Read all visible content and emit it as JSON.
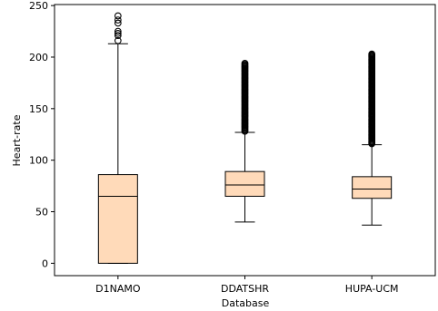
{
  "chart_data": {
    "type": "box",
    "xlabel": "Database",
    "ylabel": "Heart-rate",
    "ylim": [
      -12,
      251
    ],
    "yticks": [
      0,
      50,
      100,
      150,
      200,
      250
    ],
    "grid": false,
    "box_fill": "#ffdab9",
    "box_edge": "#000000",
    "categories": [
      "D1NAMO",
      "DDATSHR",
      "HUPA-UCM"
    ],
    "boxes": [
      {
        "label": "D1NAMO",
        "whisker_low": 0,
        "q1": 0,
        "median": 65,
        "q3": 86,
        "whisker_high": 213,
        "outliers": [
          216,
          221,
          223,
          225,
          233,
          236,
          240
        ]
      },
      {
        "label": "DDATSHR",
        "whisker_low": 40,
        "q1": 65,
        "median": 76,
        "q3": 89,
        "whisker_high": 127,
        "outlier_range": [
          128,
          194
        ]
      },
      {
        "label": "HUPA-UCM",
        "whisker_low": 37,
        "q1": 63,
        "median": 72,
        "q3": 84,
        "whisker_high": 115,
        "outlier_range": [
          116,
          203
        ]
      }
    ]
  }
}
